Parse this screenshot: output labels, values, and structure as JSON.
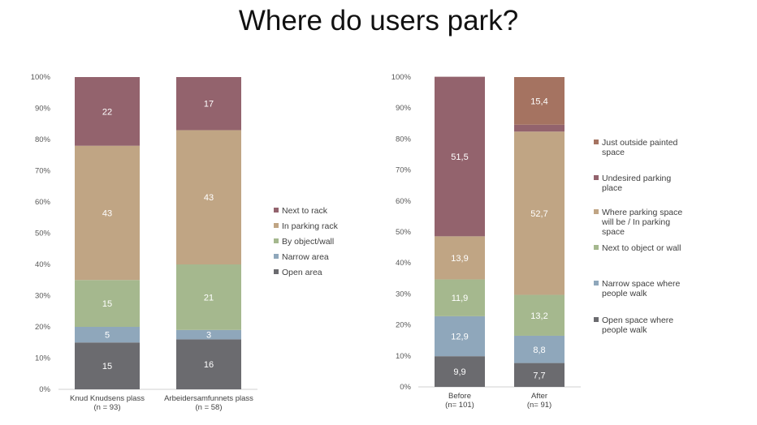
{
  "title": "Where do users park?",
  "chart_data": [
    {
      "type": "bar",
      "stacked": true,
      "percent": true,
      "ylim": [
        0,
        100
      ],
      "yticks": [
        "0%",
        "10%",
        "20%",
        "30%",
        "40%",
        "50%",
        "60%",
        "70%",
        "80%",
        "90%",
        "100%"
      ],
      "categories": [
        [
          "Knud Knudsens plass",
          "(n = 93)"
        ],
        [
          "Arbeidersamfunnets plass",
          "(n = 58)"
        ]
      ],
      "legend_position": "right",
      "series": [
        {
          "name": "Open area",
          "color": "#6b6b6f",
          "values": [
            15,
            16
          ]
        },
        {
          "name": "Narrow area",
          "color": "#8fa7bb",
          "values": [
            5,
            3
          ]
        },
        {
          "name": "By object/wall",
          "color": "#a5b88e",
          "values": [
            15,
            21
          ]
        },
        {
          "name": "In parking rack",
          "color": "#c0a584",
          "values": [
            43,
            43
          ]
        },
        {
          "name": "Next to rack",
          "color": "#93636d",
          "values": [
            22,
            17
          ]
        }
      ]
    },
    {
      "type": "bar",
      "stacked": true,
      "percent": true,
      "ylim": [
        0,
        100
      ],
      "yticks": [
        "0%",
        "10%",
        "20%",
        "30%",
        "40%",
        "50%",
        "60%",
        "70%",
        "80%",
        "90%",
        "100%"
      ],
      "categories": [
        [
          "Before",
          "(n= 101)"
        ],
        [
          "After",
          "(n= 91)"
        ]
      ],
      "legend_position": "right",
      "series": [
        {
          "name": "Open space where people walk",
          "legend_lines": [
            "Open space where",
            "people walk"
          ],
          "color": "#6b6b6f",
          "values": [
            9.9,
            7.7
          ],
          "labels": [
            "9,9",
            "7,7"
          ]
        },
        {
          "name": "Narrow space where people walk",
          "legend_lines": [
            "Narrow space where",
            "people walk"
          ],
          "color": "#8fa7bb",
          "values": [
            12.9,
            8.8
          ],
          "labels": [
            "12,9",
            "8,8"
          ]
        },
        {
          "name": "Next to object or wall",
          "legend_lines": [
            "Next to object or wall"
          ],
          "color": "#a5b88e",
          "values": [
            11.9,
            13.2
          ],
          "labels": [
            "11,9",
            "13,2"
          ]
        },
        {
          "name": "Where parking space will be / In parking space",
          "legend_lines": [
            "Where parking space",
            "will be / In parking",
            "space"
          ],
          "color": "#c0a584",
          "values": [
            13.9,
            52.7
          ],
          "labels": [
            "13,9",
            "52,7"
          ]
        },
        {
          "name": "Undesired parking place",
          "legend_lines": [
            "Undesired parking",
            "place"
          ],
          "color": "#93636d",
          "values": [
            51.5,
            2.2
          ],
          "labels": [
            "51,5",
            ""
          ]
        },
        {
          "name": "Just outside painted space",
          "legend_lines": [
            "Just outside painted",
            "space"
          ],
          "color": "#a57361",
          "values": [
            0,
            15.4
          ],
          "labels": [
            "",
            "15,4"
          ]
        }
      ]
    }
  ]
}
